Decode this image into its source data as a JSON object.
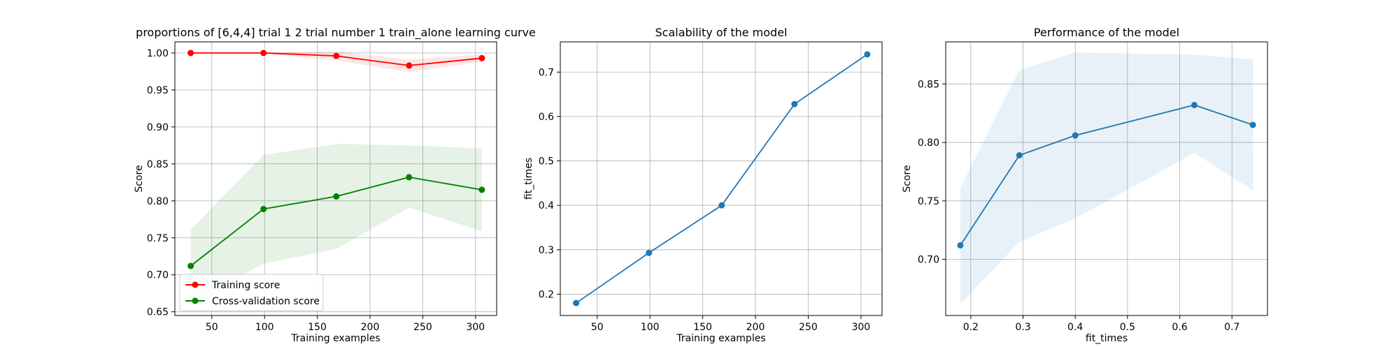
{
  "chart_data": [
    {
      "type": "line",
      "title": "proportions of [6,4,4] trial 1 2 trial number 1 train_alone learning curve",
      "xlabel": "Training examples",
      "ylabel": "Score",
      "xlim": [
        15,
        320
      ],
      "ylim": [
        0.645,
        1.015
      ],
      "xticks": [
        50,
        100,
        150,
        200,
        250,
        300
      ],
      "yticks": [
        0.65,
        0.7,
        0.75,
        0.8,
        0.85,
        0.9,
        0.95,
        1.0
      ],
      "grid": true,
      "legend_position": "lower-left",
      "x": [
        30,
        99,
        168,
        237,
        306
      ],
      "series": [
        {
          "name": "Training score",
          "color": "#ff0000",
          "values": [
            1.0,
            1.0,
            0.996,
            0.983,
            0.993
          ],
          "band_lower": [
            0.999,
            0.999,
            0.99,
            0.974,
            0.988
          ],
          "band_upper": [
            1.001,
            1.001,
            1.002,
            0.991,
            0.998
          ]
        },
        {
          "name": "Cross-validation score",
          "color": "#008000",
          "values": [
            0.712,
            0.789,
            0.806,
            0.832,
            0.815
          ],
          "band_lower": [
            0.662,
            0.715,
            0.735,
            0.791,
            0.759
          ],
          "band_upper": [
            0.761,
            0.862,
            0.877,
            0.875,
            0.871
          ]
        }
      ]
    },
    {
      "type": "line",
      "title": "Scalability of the model",
      "xlabel": "Training examples",
      "ylabel": "fit_times",
      "xlim": [
        15,
        320
      ],
      "ylim": [
        0.152,
        0.768
      ],
      "xticks": [
        50,
        100,
        150,
        200,
        250,
        300
      ],
      "yticks": [
        0.2,
        0.3,
        0.4,
        0.5,
        0.6,
        0.7
      ],
      "grid": true,
      "x": [
        30,
        99,
        168,
        237,
        306
      ],
      "series": [
        {
          "color": "#1f77b4",
          "values": [
            0.18,
            0.293,
            0.4,
            0.628,
            0.74
          ]
        }
      ]
    },
    {
      "type": "line",
      "title": "Performance of the model",
      "xlabel": "fit_times",
      "ylabel": "Score",
      "xlim": [
        0.152,
        0.768
      ],
      "ylim": [
        0.652,
        0.886
      ],
      "xticks": [
        0.2,
        0.3,
        0.4,
        0.5,
        0.6,
        0.7
      ],
      "yticks": [
        0.7,
        0.75,
        0.8,
        0.85
      ],
      "grid": true,
      "x": [
        0.18,
        0.293,
        0.4,
        0.628,
        0.74
      ],
      "series": [
        {
          "color": "#1f77b4",
          "values": [
            0.712,
            0.789,
            0.806,
            0.832,
            0.815
          ],
          "band_lower": [
            0.662,
            0.715,
            0.735,
            0.791,
            0.759
          ],
          "band_upper": [
            0.761,
            0.862,
            0.877,
            0.875,
            0.871
          ]
        }
      ]
    }
  ]
}
